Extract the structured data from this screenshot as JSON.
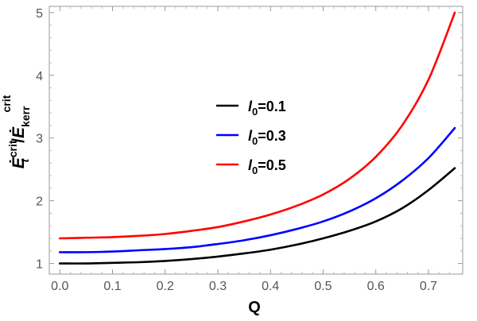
{
  "chart_data": {
    "type": "line",
    "xlabel": "Q",
    "ylabel": {
      "main": "E",
      "sub1": "t",
      "sup1": "crit",
      "slash": "/",
      "sub2": "kerr",
      "sup2": "crit"
    },
    "xlim": [
      0,
      0.75
    ],
    "ylim": [
      1,
      5
    ],
    "x_ticks": [
      0.0,
      0.1,
      0.2,
      0.3,
      0.4,
      0.5,
      0.6,
      0.7
    ],
    "x_tick_labels": [
      "0.0",
      "0.1",
      "0.2",
      "0.3",
      "0.4",
      "0.5",
      "0.6",
      "0.7"
    ],
    "y_ticks": [
      1,
      2,
      3,
      4,
      5
    ],
    "y_tick_labels": [
      "1",
      "2",
      "3",
      "4",
      "5"
    ],
    "grid": false,
    "legend_position": "center",
    "x": [
      0.0,
      0.05,
      0.1,
      0.15,
      0.2,
      0.25,
      0.3,
      0.35,
      0.4,
      0.45,
      0.5,
      0.55,
      0.6,
      0.65,
      0.7,
      0.75
    ],
    "series": [
      {
        "legend": {
          "sym": "l",
          "sub": "0",
          "val": "=0.1"
        },
        "color": "#000000",
        "values": [
          1.0,
          1.0,
          1.01,
          1.02,
          1.04,
          1.07,
          1.11,
          1.16,
          1.22,
          1.3,
          1.4,
          1.52,
          1.67,
          1.88,
          2.17,
          2.52
        ]
      },
      {
        "legend": {
          "sym": "l",
          "sub": "0",
          "val": "=0.3"
        },
        "color": "#0000ff",
        "values": [
          1.18,
          1.18,
          1.19,
          1.21,
          1.23,
          1.26,
          1.31,
          1.37,
          1.45,
          1.55,
          1.67,
          1.83,
          2.04,
          2.32,
          2.68,
          3.16
        ]
      },
      {
        "legend": {
          "sym": "l",
          "sub": "0",
          "val": "=0.5"
        },
        "color": "#ff0000",
        "values": [
          1.4,
          1.41,
          1.42,
          1.44,
          1.47,
          1.52,
          1.58,
          1.67,
          1.78,
          1.92,
          2.1,
          2.35,
          2.7,
          3.2,
          3.93,
          5.0
        ]
      }
    ]
  }
}
